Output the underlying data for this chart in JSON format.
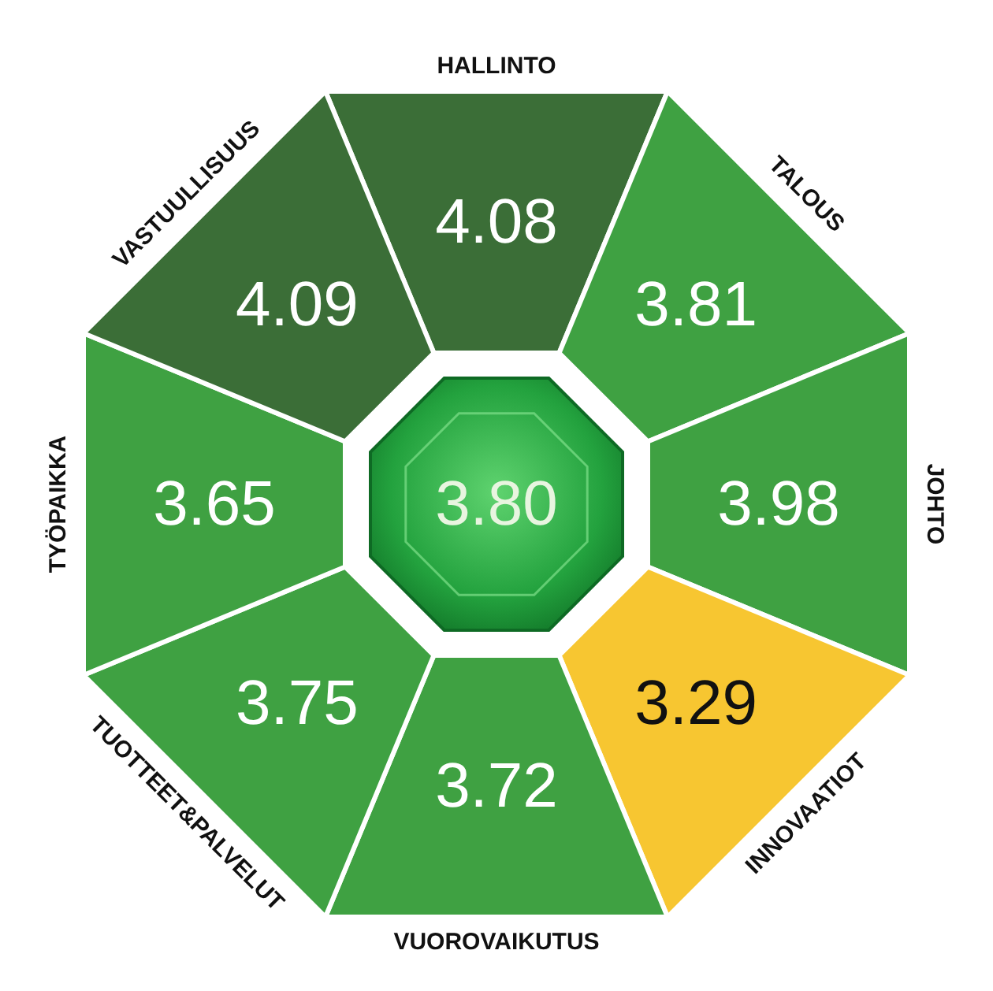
{
  "chart_data": {
    "type": "other",
    "categories": [
      "HALLINTO",
      "TALOUS",
      "JOHTO",
      "INNOVAATIOT",
      "VUOROVAIKUTUS",
      "TUOTTEET&PALVELUT",
      "TYÖPAIKKA",
      "VASTUULLISUUS"
    ],
    "values": [
      4.08,
      3.81,
      3.98,
      3.29,
      3.72,
      3.75,
      3.65,
      4.09
    ],
    "colors": [
      "#3b6e37",
      "#3fa142",
      "#3fa142",
      "#f7c631",
      "#3fa142",
      "#3fa142",
      "#3fa142",
      "#3b6e37"
    ],
    "annotations": [
      "3.80"
    ],
    "data_labels": true
  }
}
